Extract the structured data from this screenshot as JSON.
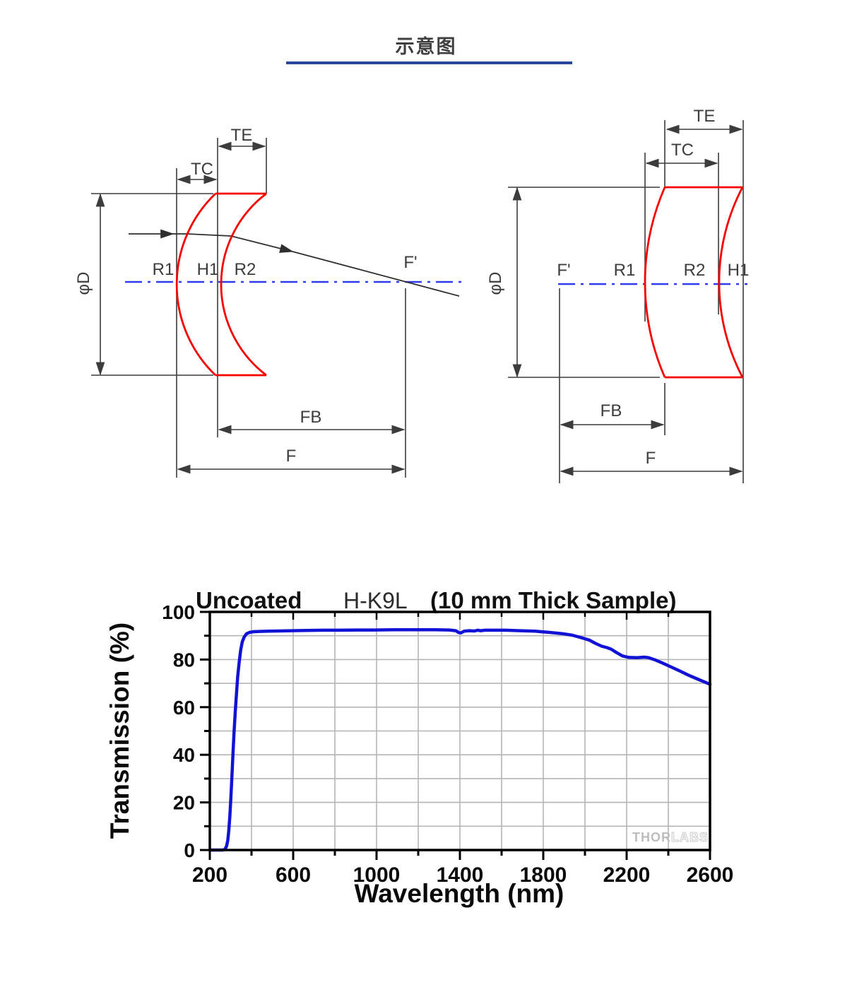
{
  "header": {
    "title": "示意图"
  },
  "colors": {
    "underline": "#27489b",
    "lens_outline": "#f80000",
    "optical_axis": "#2e3bf0",
    "drawing_lines": "#3c3c3c",
    "grid": "#b5b5b5",
    "curve": "#1212d6"
  },
  "diagrams": {
    "left": {
      "te": "TE",
      "tc": "TC",
      "dia": "φD",
      "r1": "R1",
      "h1": "H1",
      "r2": "R2",
      "f_prime": "F'",
      "fb": "FB",
      "f": "F"
    },
    "right": {
      "te": "TE",
      "tc": "TC",
      "dia": "φD",
      "r1": "R1",
      "h1": "H1",
      "r2": "R2",
      "f_prime": "F'",
      "fb": "FB",
      "f": "F"
    }
  },
  "chart_data": {
    "type": "line",
    "title_parts": [
      "Uncoated",
      "H-K9L",
      "(10 mm Thick Sample)"
    ],
    "xlabel": "Wavelength (nm)",
    "ylabel": "Transmission (%)",
    "xlim": [
      200,
      2600
    ],
    "ylim": [
      0,
      100
    ],
    "x_ticks": [
      200,
      600,
      1000,
      1400,
      1800,
      2200,
      2600
    ],
    "x_minor_step": 200,
    "y_ticks": [
      0,
      20,
      40,
      60,
      80,
      100
    ],
    "y_minor_step": 10,
    "grid": true,
    "legend": "none",
    "watermark": {
      "solid": "THOR",
      "outline": "LABS"
    },
    "series": [
      {
        "name": "Uncoated H-K9L transmission",
        "color": "#1212d6",
        "points": [
          [
            200,
            0
          ],
          [
            262,
            0
          ],
          [
            272,
            0.3
          ],
          [
            280,
            1.5
          ],
          [
            286,
            4
          ],
          [
            291,
            8
          ],
          [
            296,
            14
          ],
          [
            301,
            22
          ],
          [
            306,
            31
          ],
          [
            311,
            40
          ],
          [
            316,
            49
          ],
          [
            322,
            58
          ],
          [
            328,
            66
          ],
          [
            334,
            73
          ],
          [
            341,
            79
          ],
          [
            348,
            84
          ],
          [
            356,
            87.5
          ],
          [
            365,
            89.5
          ],
          [
            376,
            90.8
          ],
          [
            390,
            91.4
          ],
          [
            410,
            91.7
          ],
          [
            440,
            91.8
          ],
          [
            480,
            91.9
          ],
          [
            530,
            92.0
          ],
          [
            590,
            92.1
          ],
          [
            660,
            92.2
          ],
          [
            740,
            92.3
          ],
          [
            820,
            92.3
          ],
          [
            900,
            92.4
          ],
          [
            990,
            92.4
          ],
          [
            1080,
            92.5
          ],
          [
            1180,
            92.5
          ],
          [
            1280,
            92.5
          ],
          [
            1350,
            92.4
          ],
          [
            1380,
            92.1
          ],
          [
            1395,
            91.3
          ],
          [
            1405,
            91.2
          ],
          [
            1420,
            91.9
          ],
          [
            1445,
            92.1
          ],
          [
            1470,
            92.0
          ],
          [
            1485,
            92.3
          ],
          [
            1500,
            92.1
          ],
          [
            1520,
            92.3
          ],
          [
            1560,
            92.3
          ],
          [
            1620,
            92.3
          ],
          [
            1690,
            92.1
          ],
          [
            1760,
            91.9
          ],
          [
            1830,
            91.4
          ],
          [
            1890,
            90.9
          ],
          [
            1940,
            90.2
          ],
          [
            1990,
            89.0
          ],
          [
            2020,
            88.2
          ],
          [
            2050,
            86.8
          ],
          [
            2080,
            85.6
          ],
          [
            2105,
            85.0
          ],
          [
            2125,
            84.4
          ],
          [
            2150,
            83.0
          ],
          [
            2180,
            81.5
          ],
          [
            2210,
            80.9
          ],
          [
            2250,
            80.8
          ],
          [
            2285,
            81.0
          ],
          [
            2305,
            80.8
          ],
          [
            2335,
            79.9
          ],
          [
            2370,
            78.6
          ],
          [
            2410,
            77.0
          ],
          [
            2450,
            75.4
          ],
          [
            2495,
            73.5
          ],
          [
            2540,
            71.8
          ],
          [
            2600,
            69.6
          ]
        ]
      }
    ]
  }
}
